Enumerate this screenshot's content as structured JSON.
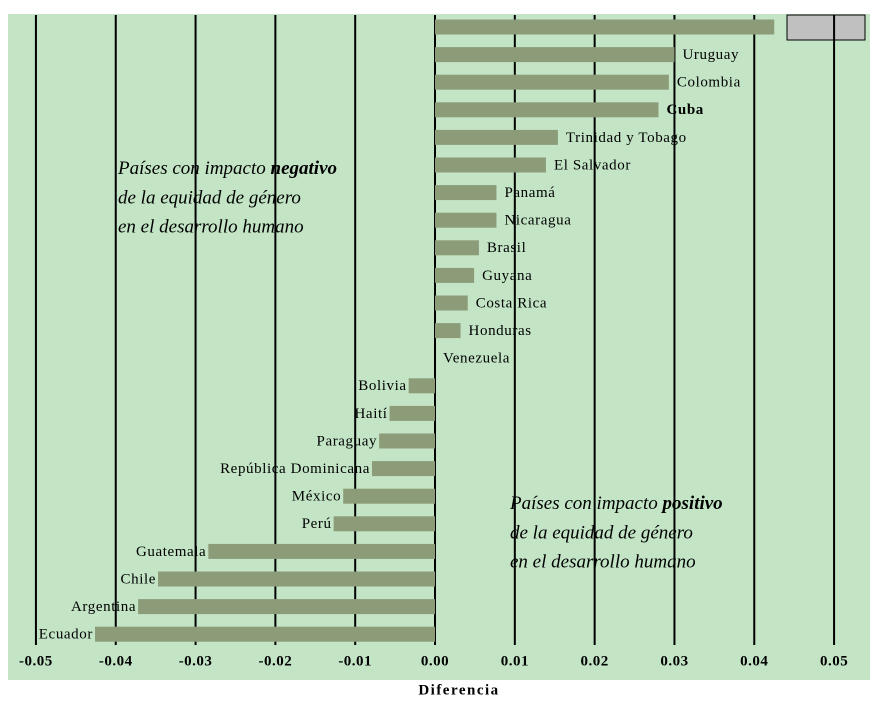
{
  "chart_data": {
    "type": "barh",
    "x_label": "Diferencia",
    "categories": [
      null,
      "Uruguay",
      "Colombia",
      "Cuba",
      "Trinidad y Tobago",
      "El Salvador",
      "Panamá",
      "Nicaragua",
      "Brasil",
      "Guyana",
      "Costa Rica",
      "Honduras",
      "Venezuela",
      "Bolivia",
      "Haití",
      "Paraguay",
      "República Dominicana",
      "México",
      "Perú",
      "Guatemala",
      "Chile",
      "Argentina",
      "Ecuador"
    ],
    "values": [
      0.0425,
      0.03,
      0.0293,
      0.028,
      0.0154,
      0.0139,
      0.0077,
      0.0077,
      0.0055,
      0.0049,
      0.0041,
      0.0032,
      0,
      -0.0033,
      -0.0057,
      -0.007,
      -0.0079,
      -0.0115,
      -0.0127,
      -0.0284,
      -0.0347,
      -0.0372,
      -0.0426
    ],
    "color": "#8c9c78",
    "bold_category_index": 3,
    "xlim": [
      -0.0535,
      0.0545
    ],
    "xticks": [
      -0.05,
      -0.04,
      -0.03,
      -0.02,
      -0.01,
      {
        "value": 0,
        "label": "0.00"
      },
      0.01,
      0.02,
      0.03,
      0.04,
      0.05
    ],
    "grid": true,
    "annotations": [
      {
        "parts": [
          "Países con impacto ",
          "negativo",
          "de la equidad de género",
          "en el desarrollo humano"
        ]
      },
      {
        "parts": [
          "Países con impacto ",
          "positivo",
          "de la equidad de género",
          "en el desarrollo humano"
        ]
      }
    ]
  }
}
